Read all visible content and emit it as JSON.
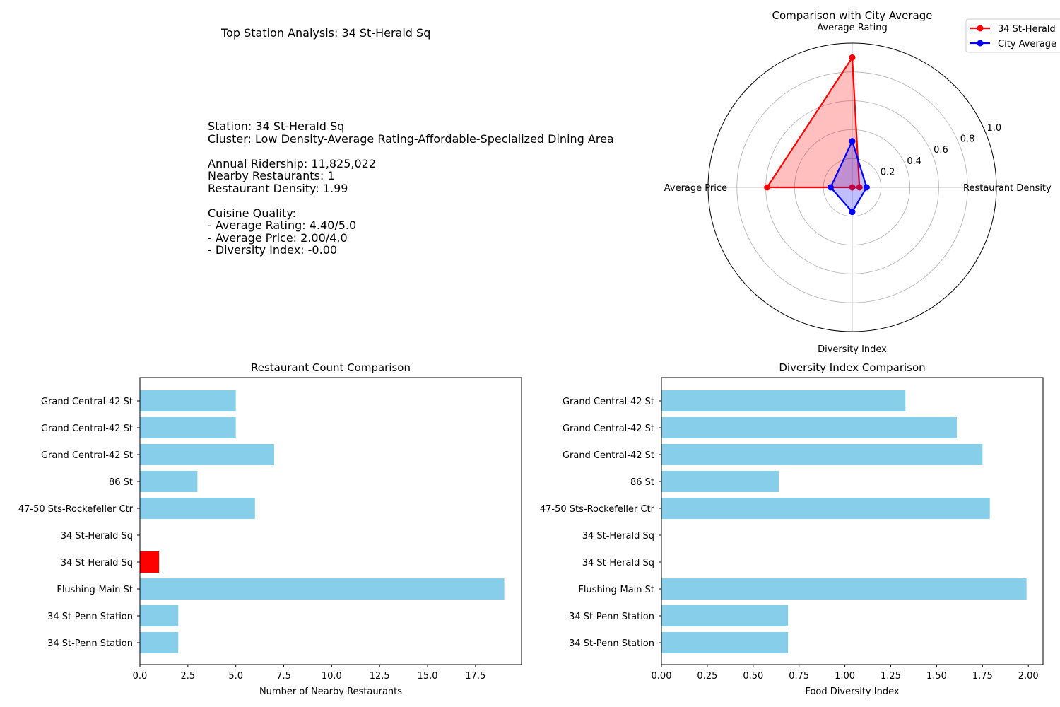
{
  "info_panel": {
    "title": "Top Station Analysis: 34 St-Herald Sq",
    "lines": [
      "Station: 34 St-Herald Sq",
      "Cluster: Low Density-Average Rating-Affordable-Specialized Dining Area",
      "",
      "Annual Ridership: 11,825,022",
      "Nearby Restaurants: 1",
      "Restaurant Density: 1.99",
      "",
      "Cuisine Quality:",
      "- Average Rating: 4.40/5.0",
      "- Average Price: 2.00/4.0",
      "- Diversity Index: -0.00"
    ]
  },
  "chart_data": [
    {
      "type": "radar",
      "title": "Comparison with City Average",
      "axes": [
        "Restaurant Density",
        "Average Rating",
        "Average Price",
        "Diversity Index"
      ],
      "rlim": [
        0,
        1.0
      ],
      "rticks": [
        "0.2",
        "0.4",
        "0.6",
        "0.8",
        "1.0"
      ],
      "rtick_values": [
        0.2,
        0.4,
        0.6,
        0.8,
        1.0
      ],
      "grid": true,
      "legend_position": "top-right",
      "series": [
        {
          "name": "34 St-Herald",
          "values": [
            0.05,
            0.9,
            0.59,
            0.0
          ],
          "color": "#ff0000"
        },
        {
          "name": "City Average",
          "values": [
            0.1,
            0.32,
            0.15,
            0.17
          ],
          "color": "#0000ff"
        }
      ]
    },
    {
      "type": "bar",
      "orientation": "horizontal",
      "title": "Restaurant Count Comparison",
      "xlabel": "Number of Nearby Restaurants",
      "ylabel": "",
      "xlim": [
        0,
        19.9
      ],
      "xticks": [
        "0.0",
        "2.5",
        "5.0",
        "7.5",
        "10.0",
        "12.5",
        "15.0",
        "17.5"
      ],
      "xtick_values": [
        0,
        2.5,
        5,
        7.5,
        10,
        12.5,
        15,
        17.5
      ],
      "categories": [
        "Grand Central-42 St",
        "Grand Central-42 St",
        "Grand Central-42 St",
        "86 St",
        "47-50 Sts-Rockefeller Ctr",
        "34 St-Herald Sq",
        "34 St-Herald Sq",
        "Flushing-Main St",
        "34 St-Penn Station",
        "34 St-Penn Station"
      ],
      "values": [
        5,
        5,
        7,
        3,
        6,
        0,
        1,
        19,
        2,
        2
      ],
      "highlight_index": 6,
      "bar_color": "#87ceeb",
      "highlight_color": "#ff0000"
    },
    {
      "type": "bar",
      "orientation": "horizontal",
      "title": "Diversity Index Comparison",
      "xlabel": "Food Diversity Index",
      "ylabel": "",
      "xlim": [
        0,
        2.08
      ],
      "xticks": [
        "0.00",
        "0.25",
        "0.50",
        "0.75",
        "1.00",
        "1.25",
        "1.50",
        "1.75",
        "2.00"
      ],
      "xtick_values": [
        0,
        0.25,
        0.5,
        0.75,
        1.0,
        1.25,
        1.5,
        1.75,
        2.0
      ],
      "categories": [
        "Grand Central-42 St",
        "Grand Central-42 St",
        "Grand Central-42 St",
        "86 St",
        "47-50 Sts-Rockefeller Ctr",
        "34 St-Herald Sq",
        "34 St-Herald Sq",
        "Flushing-Main St",
        "34 St-Penn Station",
        "34 St-Penn Station"
      ],
      "values": [
        1.33,
        1.61,
        1.75,
        0.64,
        1.79,
        0.0,
        0.0,
        1.99,
        0.69,
        0.69
      ],
      "bar_color": "#87ceeb"
    }
  ]
}
